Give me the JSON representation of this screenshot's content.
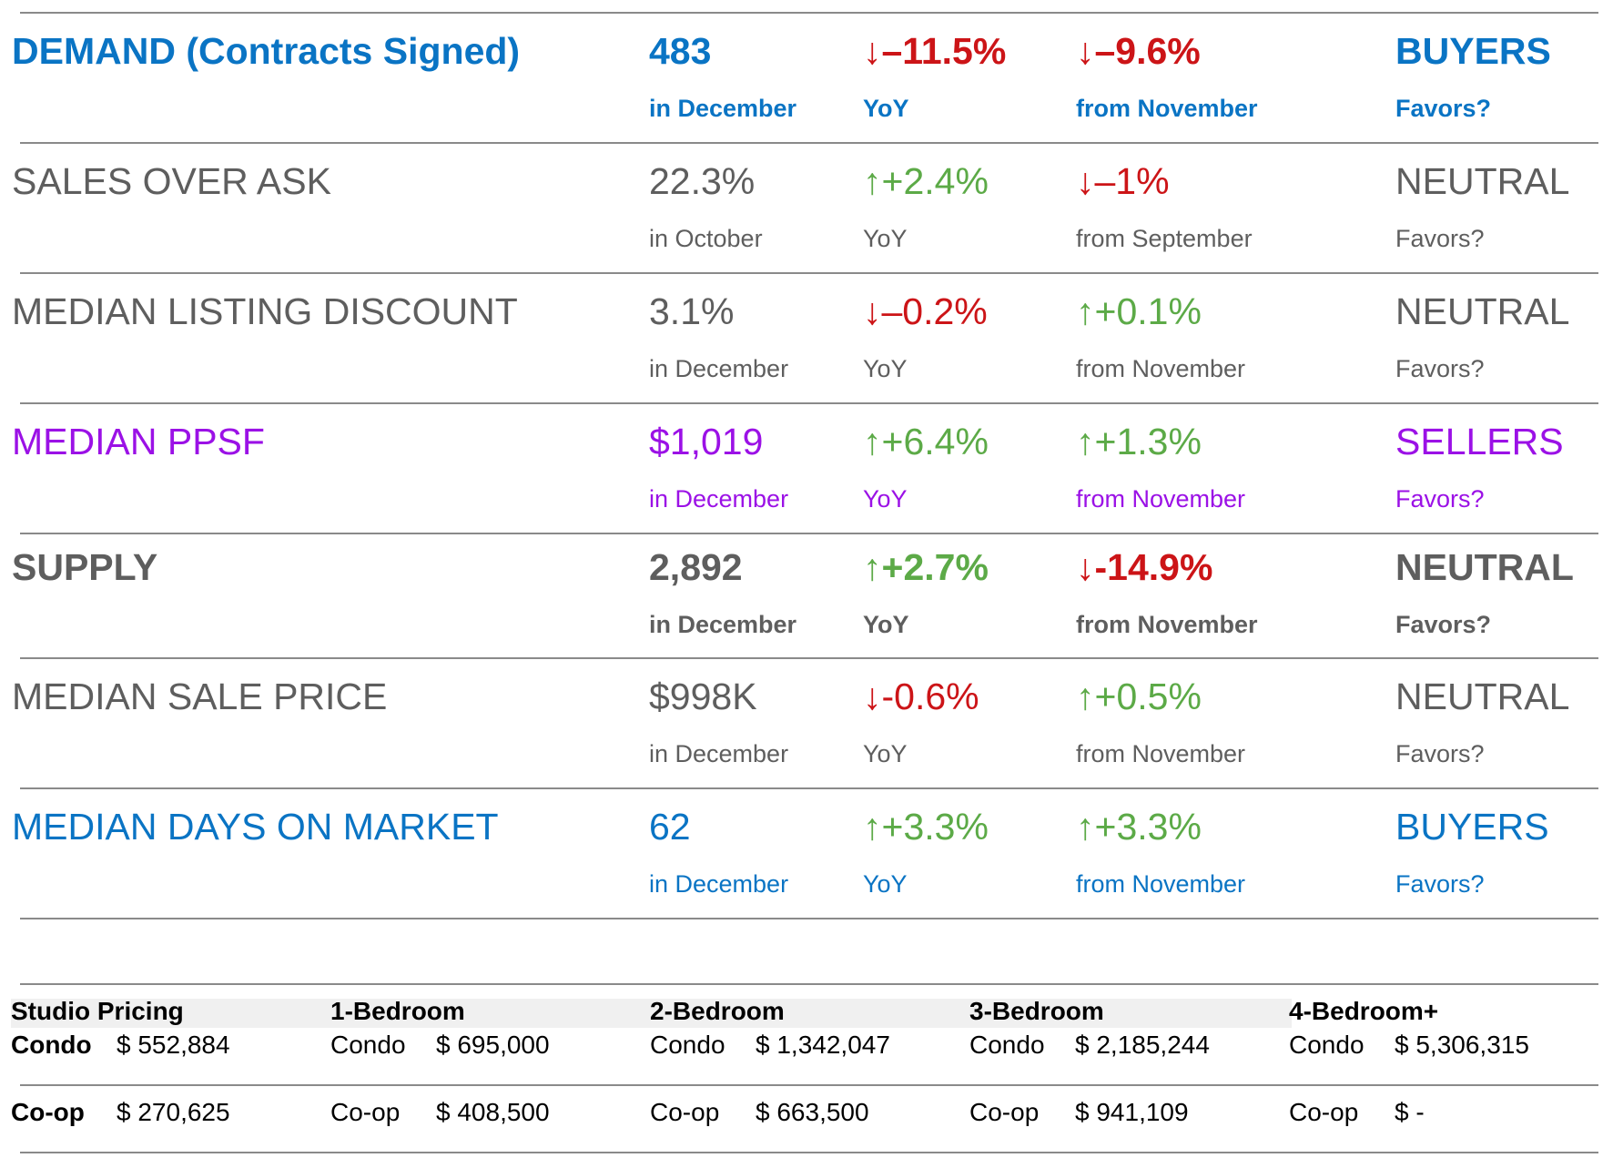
{
  "metrics": [
    {
      "name": "DEMAND (Contracts Signed)",
      "value": "483",
      "value_sub": "in December",
      "yoy": "↓–11.5%",
      "yoy_sub": "YoY",
      "yoy_dir": "down",
      "mom": "↓–9.6%",
      "mom_sub": "from November",
      "mom_dir": "down",
      "favors": "BUYERS",
      "favors_sub": "Favors?",
      "theme": "blue",
      "bold": true
    },
    {
      "name": "SALES OVER ASK",
      "value": "22.3%",
      "value_sub": "in October",
      "yoy": "↑+2.4%",
      "yoy_sub": "YoY",
      "yoy_dir": "up",
      "mom": "↓–1%",
      "mom_sub": "from September",
      "mom_dir": "down",
      "favors": "NEUTRAL",
      "favors_sub": "Favors?",
      "theme": "gray",
      "bold": false
    },
    {
      "name": "MEDIAN LISTING DISCOUNT",
      "value": "3.1%",
      "value_sub": "in December",
      "yoy": "↓–0.2%",
      "yoy_sub": "YoY",
      "yoy_dir": "down",
      "mom": "↑+0.1%",
      "mom_sub": "from November",
      "mom_dir": "up",
      "favors": "NEUTRAL",
      "favors_sub": "Favors?",
      "theme": "gray",
      "bold": false
    },
    {
      "name": "MEDIAN PPSF",
      "value": "$1,019",
      "value_sub": "in December",
      "yoy": "↑+6.4%",
      "yoy_sub": "YoY",
      "yoy_dir": "up",
      "mom": "↑+1.3%",
      "mom_sub": "from November",
      "mom_dir": "up",
      "favors": "SELLERS",
      "favors_sub": "Favors?",
      "theme": "purple",
      "bold": false
    },
    {
      "name": "SUPPLY",
      "value": "2,892",
      "value_sub": "in December",
      "yoy": "↑+2.7%",
      "yoy_sub": "YoY",
      "yoy_dir": "up",
      "mom": "↓-14.9%",
      "mom_sub": "from November",
      "mom_dir": "down",
      "favors": "NEUTRAL",
      "favors_sub": "Favors?",
      "theme": "gray",
      "bold": true
    },
    {
      "name": "MEDIAN SALE PRICE",
      "value": "$998K",
      "value_sub": "in December",
      "yoy": "↓-0.6%",
      "yoy_sub": "YoY",
      "yoy_dir": "down",
      "mom": "↑+0.5%",
      "mom_sub": "from November",
      "mom_dir": "up",
      "favors": "NEUTRAL",
      "favors_sub": "Favors?",
      "theme": "gray",
      "bold": false
    },
    {
      "name": "MEDIAN DAYS ON MARKET",
      "value": "62",
      "value_sub": "in December",
      "yoy": "↑+3.3%",
      "yoy_sub": "YoY",
      "yoy_dir": "up",
      "mom": "↑+3.3%",
      "mom_sub": "from November",
      "mom_dir": "up",
      "favors": "BUYERS",
      "favors_sub": "Favors?",
      "theme": "blue",
      "bold": false
    }
  ],
  "colors": {
    "blue": "#0a74c4",
    "gray": "#5e5e5e",
    "purple": "#9b11e6",
    "up": "#5caa47",
    "down": "#cc1417"
  },
  "pricing": {
    "columns": [
      {
        "header": "Studio Pricing",
        "condo_label": "Condo",
        "condo_value": "$ 552,884",
        "coop_label": "Co-op",
        "coop_value": "$ 270,625"
      },
      {
        "header": "1-Bedroom",
        "condo_label": "Condo",
        "condo_value": "$ 695,000",
        "coop_label": "Co-op",
        "coop_value": "$ 408,500"
      },
      {
        "header": "2-Bedroom",
        "condo_label": "Condo",
        "condo_value": "$ 1,342,047",
        "coop_label": "Co-op",
        "coop_value": "$ 663,500"
      },
      {
        "header": "3-Bedroom",
        "condo_label": "Condo",
        "condo_value": "$ 2,185,244",
        "coop_label": "Co-op",
        "coop_value": "$ 941,109"
      },
      {
        "header": "4-Bedroom+",
        "condo_label": "Condo",
        "condo_value": "$ 5,306,315",
        "coop_label": "Co-op",
        "coop_value": "$ -"
      }
    ]
  }
}
